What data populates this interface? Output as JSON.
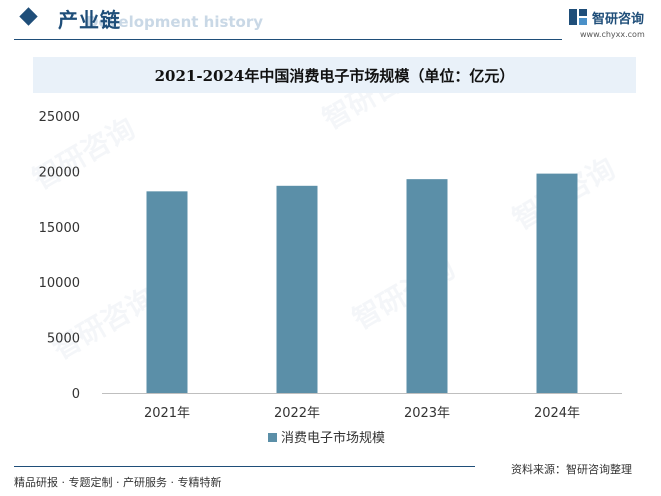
{
  "header": {
    "section_title": "产业链",
    "section_subtitle": "Development history",
    "brand_name": "智研咨询",
    "brand_url": "www.chyxx.com"
  },
  "watermark": "智研咨询",
  "footer": {
    "left": "精品研报 · 专题定制 · 产研服务 · 专精特新",
    "right": "资料来源：智研咨询整理"
  },
  "colors": {
    "bar": "#5b8fa8",
    "brand": "#1f4e79",
    "title_band": "#e9f1f9"
  },
  "chart_data": {
    "type": "bar",
    "title": "2021-2024年中国消费电子市场规模（单位：亿元）",
    "categories": [
      "2021年",
      "2022年",
      "2023年",
      "2024年"
    ],
    "series": [
      {
        "name": "消费电子市场规模",
        "values": [
          18200,
          18700,
          19300,
          19800
        ]
      }
    ],
    "ylim": [
      0,
      25000
    ],
    "yticks": [
      "0",
      "5000",
      "10000",
      "15000",
      "20000",
      "25000"
    ],
    "grid": false,
    "legend": "bottom"
  }
}
